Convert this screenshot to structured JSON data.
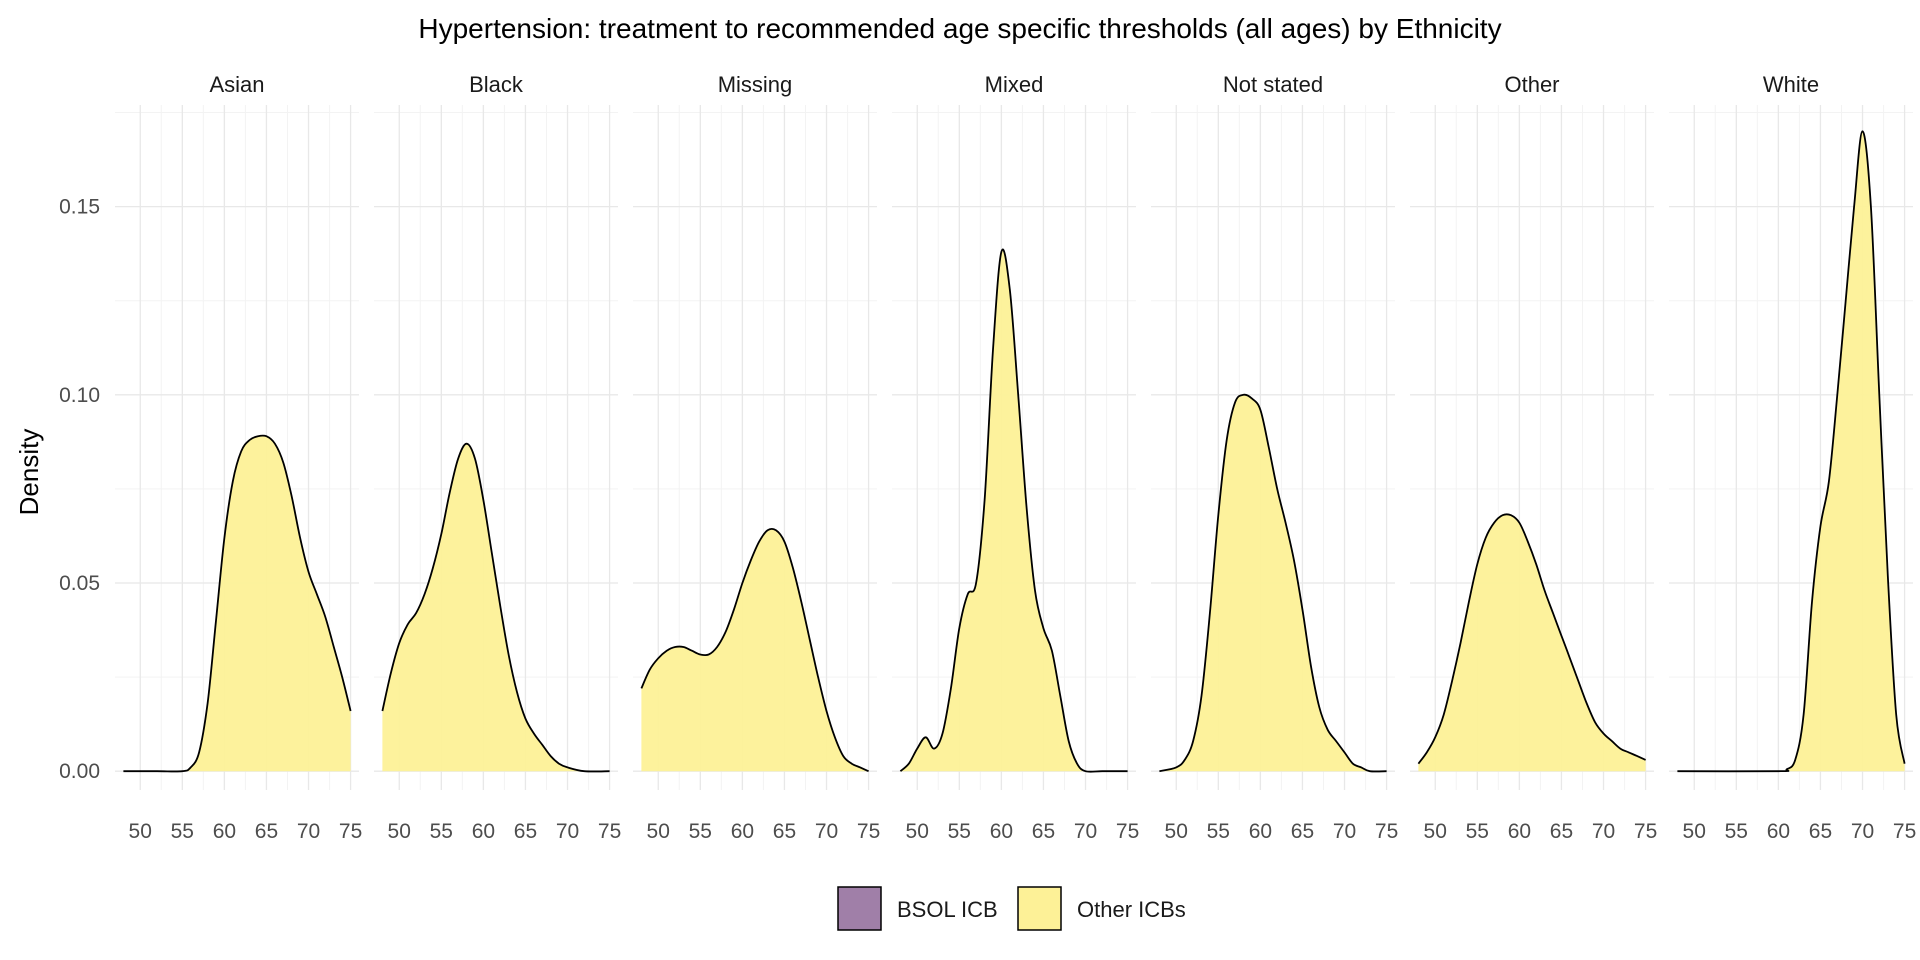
{
  "chart_data": {
    "type": "density",
    "title": "Hypertension: treatment to recommended age specific thresholds (all ages) by Ethnicity",
    "xlabel": "",
    "ylabel": "Density",
    "xlim": [
      47,
      76
    ],
    "ylim": [
      -0.005,
      0.177
    ],
    "x_ticks": [
      50,
      55,
      60,
      65,
      70,
      75
    ],
    "x_tick_labels": [
      "50",
      "55",
      "60",
      "65",
      "70",
      "75"
    ],
    "y_ticks": [
      0.0,
      0.05,
      0.1,
      0.15
    ],
    "y_tick_labels": [
      "0.00",
      "0.05",
      "0.10",
      "0.15"
    ],
    "legend": {
      "placement": "bottom",
      "items": [
        {
          "label": "BSOL ICB",
          "color": "#a07fa8"
        },
        {
          "label": "Other ICBs",
          "color": "#fdf197"
        }
      ]
    },
    "fill_color": "#fdf197",
    "line_color": "#000000",
    "panels": [
      {
        "name": "Asian",
        "series": "Other ICBs",
        "points": [
          [
            48,
            0
          ],
          [
            52,
            0
          ],
          [
            55,
            0
          ],
          [
            56,
            0.001
          ],
          [
            57,
            0.005
          ],
          [
            58,
            0.018
          ],
          [
            59,
            0.04
          ],
          [
            60,
            0.062
          ],
          [
            61,
            0.077
          ],
          [
            62,
            0.085
          ],
          [
            63,
            0.088
          ],
          [
            64,
            0.089
          ],
          [
            65,
            0.089
          ],
          [
            66,
            0.087
          ],
          [
            67,
            0.082
          ],
          [
            68,
            0.073
          ],
          [
            69,
            0.062
          ],
          [
            70,
            0.053
          ],
          [
            71,
            0.047
          ],
          [
            72,
            0.041
          ],
          [
            73,
            0.033
          ],
          [
            74,
            0.025
          ],
          [
            75,
            0.016
          ]
        ]
      },
      {
        "name": "Black",
        "series": "Other ICBs",
        "points": [
          [
            48,
            0.016
          ],
          [
            49,
            0.026
          ],
          [
            50,
            0.034
          ],
          [
            51,
            0.039
          ],
          [
            52,
            0.042
          ],
          [
            53,
            0.047
          ],
          [
            54,
            0.054
          ],
          [
            55,
            0.063
          ],
          [
            56,
            0.074
          ],
          [
            57,
            0.083
          ],
          [
            58,
            0.087
          ],
          [
            59,
            0.083
          ],
          [
            60,
            0.072
          ],
          [
            61,
            0.058
          ],
          [
            62,
            0.044
          ],
          [
            63,
            0.031
          ],
          [
            64,
            0.021
          ],
          [
            65,
            0.014
          ],
          [
            66,
            0.01
          ],
          [
            67,
            0.007
          ],
          [
            68,
            0.004
          ],
          [
            69,
            0.002
          ],
          [
            70,
            0.001
          ],
          [
            72,
            0
          ],
          [
            75,
            0
          ]
        ]
      },
      {
        "name": "Missing",
        "series": "Other ICBs",
        "points": [
          [
            48,
            0.022
          ],
          [
            49,
            0.027
          ],
          [
            50,
            0.03
          ],
          [
            51,
            0.032
          ],
          [
            52,
            0.033
          ],
          [
            53,
            0.033
          ],
          [
            54,
            0.032
          ],
          [
            55,
            0.031
          ],
          [
            56,
            0.031
          ],
          [
            57,
            0.033
          ],
          [
            58,
            0.037
          ],
          [
            59,
            0.043
          ],
          [
            60,
            0.05
          ],
          [
            61,
            0.056
          ],
          [
            62,
            0.061
          ],
          [
            63,
            0.064
          ],
          [
            64,
            0.064
          ],
          [
            65,
            0.061
          ],
          [
            66,
            0.054
          ],
          [
            67,
            0.045
          ],
          [
            68,
            0.035
          ],
          [
            69,
            0.025
          ],
          [
            70,
            0.016
          ],
          [
            71,
            0.009
          ],
          [
            72,
            0.004
          ],
          [
            73,
            0.002
          ],
          [
            74,
            0.001
          ],
          [
            75,
            0
          ]
        ]
      },
      {
        "name": "Mixed",
        "series": "Other ICBs",
        "points": [
          [
            48,
            0
          ],
          [
            49,
            0.002
          ],
          [
            50,
            0.006
          ],
          [
            51,
            0.009
          ],
          [
            52,
            0.006
          ],
          [
            53,
            0.01
          ],
          [
            54,
            0.022
          ],
          [
            55,
            0.038
          ],
          [
            56,
            0.047
          ],
          [
            57,
            0.05
          ],
          [
            58,
            0.072
          ],
          [
            59,
            0.112
          ],
          [
            60,
            0.138
          ],
          [
            61,
            0.128
          ],
          [
            62,
            0.1
          ],
          [
            63,
            0.07
          ],
          [
            64,
            0.048
          ],
          [
            65,
            0.038
          ],
          [
            66,
            0.032
          ],
          [
            67,
            0.02
          ],
          [
            68,
            0.008
          ],
          [
            69,
            0.002
          ],
          [
            70,
            0
          ],
          [
            72,
            0
          ],
          [
            75,
            0
          ]
        ]
      },
      {
        "name": "Not stated",
        "series": "Other ICBs",
        "points": [
          [
            48,
            0
          ],
          [
            50,
            0.001
          ],
          [
            51,
            0.003
          ],
          [
            52,
            0.008
          ],
          [
            53,
            0.02
          ],
          [
            54,
            0.042
          ],
          [
            55,
            0.068
          ],
          [
            56,
            0.088
          ],
          [
            57,
            0.098
          ],
          [
            58,
            0.1
          ],
          [
            59,
            0.099
          ],
          [
            60,
            0.096
          ],
          [
            61,
            0.086
          ],
          [
            62,
            0.075
          ],
          [
            63,
            0.066
          ],
          [
            64,
            0.056
          ],
          [
            65,
            0.043
          ],
          [
            66,
            0.028
          ],
          [
            67,
            0.017
          ],
          [
            68,
            0.011
          ],
          [
            69,
            0.008
          ],
          [
            70,
            0.005
          ],
          [
            71,
            0.002
          ],
          [
            72,
            0.001
          ],
          [
            73,
            0
          ],
          [
            75,
            0
          ]
        ]
      },
      {
        "name": "Other",
        "series": "Other ICBs",
        "points": [
          [
            48,
            0.002
          ],
          [
            49,
            0.005
          ],
          [
            50,
            0.009
          ],
          [
            51,
            0.015
          ],
          [
            52,
            0.024
          ],
          [
            53,
            0.034
          ],
          [
            54,
            0.045
          ],
          [
            55,
            0.055
          ],
          [
            56,
            0.062
          ],
          [
            57,
            0.066
          ],
          [
            58,
            0.068
          ],
          [
            59,
            0.068
          ],
          [
            60,
            0.066
          ],
          [
            61,
            0.061
          ],
          [
            62,
            0.055
          ],
          [
            63,
            0.048
          ],
          [
            64,
            0.042
          ],
          [
            65,
            0.036
          ],
          [
            66,
            0.03
          ],
          [
            67,
            0.024
          ],
          [
            68,
            0.018
          ],
          [
            69,
            0.013
          ],
          [
            70,
            0.01
          ],
          [
            71,
            0.008
          ],
          [
            72,
            0.006
          ],
          [
            73,
            0.005
          ],
          [
            74,
            0.004
          ],
          [
            75,
            0.003
          ]
        ]
      },
      {
        "name": "White",
        "series": "Other ICBs",
        "points": [
          [
            48,
            0
          ],
          [
            60,
            0
          ],
          [
            61,
            0.0005
          ],
          [
            62,
            0.003
          ],
          [
            63,
            0.015
          ],
          [
            64,
            0.045
          ],
          [
            65,
            0.065
          ],
          [
            66,
            0.077
          ],
          [
            67,
            0.1
          ],
          [
            68,
            0.125
          ],
          [
            69,
            0.15
          ],
          [
            70,
            0.17
          ],
          [
            71,
            0.15
          ],
          [
            72,
            0.1
          ],
          [
            73,
            0.052
          ],
          [
            74,
            0.015
          ],
          [
            75,
            0.002
          ]
        ]
      }
    ]
  }
}
